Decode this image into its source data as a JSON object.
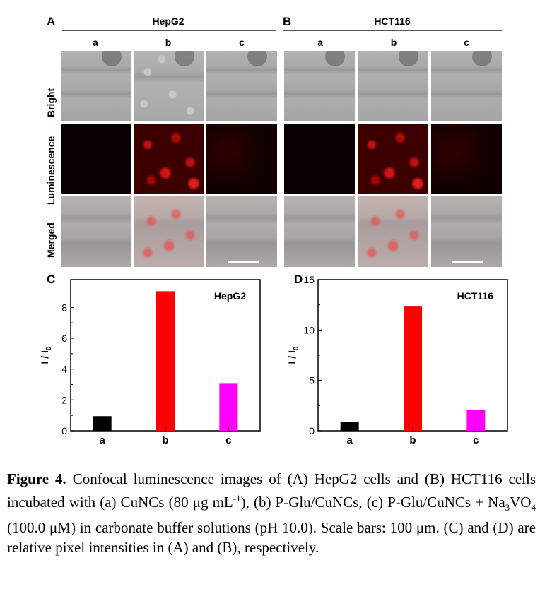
{
  "panels": {
    "A": {
      "letter": "A",
      "title": "HepG2"
    },
    "B": {
      "letter": "B",
      "title": "HCT116"
    },
    "column_labels": [
      "a",
      "b",
      "c"
    ],
    "row_labels": [
      "Bright",
      "Luminescence",
      "Merged"
    ]
  },
  "chart_data": [
    {
      "type": "bar",
      "panel_letter": "C",
      "legend_text": "HepG2",
      "categories": [
        "a",
        "b",
        "c"
      ],
      "values": [
        0.95,
        9.05,
        3.05
      ],
      "colors": [
        "#000000",
        "#ff0000",
        "#ff00ff"
      ],
      "ylabel": "I / I0",
      "ylabel_main": "I / I",
      "ylabel_sub": "0",
      "ylim": [
        0,
        9.8
      ],
      "yticks": [
        0,
        2,
        4,
        6,
        8
      ]
    },
    {
      "type": "bar",
      "panel_letter": "D",
      "legend_text": "HCT116",
      "categories": [
        "a",
        "b",
        "c"
      ],
      "values": [
        0.9,
        12.4,
        2.05
      ],
      "colors": [
        "#000000",
        "#ff0000",
        "#ff00ff"
      ],
      "ylabel": "I / I0",
      "ylabel_main": "I / I",
      "ylabel_sub": "0",
      "ylim": [
        0,
        15
      ],
      "yticks": [
        0,
        5,
        10,
        15
      ]
    }
  ],
  "caption": {
    "label": "Figure 4.",
    "text_1": " Confocal luminescence images of (A) HepG2 cells and (B) HCT116 cells incubated with (a) CuNCs (80 μg mL",
    "sup_1": "-1",
    "text_2": "), (b) P-Glu/CuNCs, (c) P-Glu/CuNCs + Na",
    "sub_1": "3",
    "text_3": "VO",
    "sub_2": "4",
    "text_4": " (100.0 μM) in carbonate buffer solutions (pH 10.0). Scale bars: 100 μm. (C) and (D) are relative pixel intensities in (A) and (B), respectively."
  }
}
